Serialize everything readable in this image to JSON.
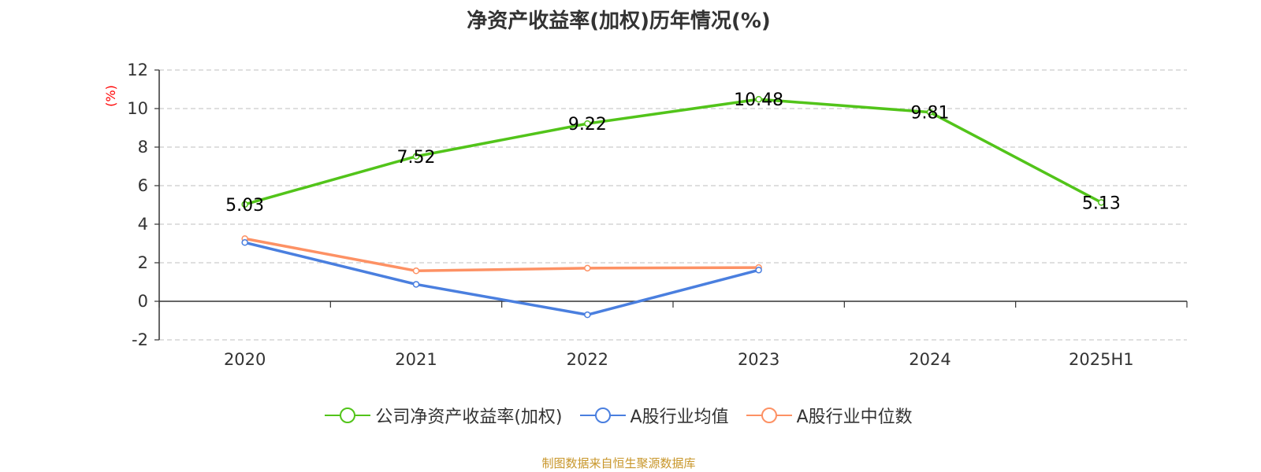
{
  "title": "净资产收益率(加权)历年情况(%)",
  "source": "制图数据来自恒生聚源数据库",
  "colors": {
    "axis": "#333333",
    "grid": "#cccccc",
    "ylabel": "#ff0000",
    "text": "#333333"
  },
  "chart_data": {
    "type": "line",
    "title": "净资产收益率(加权)历年情况(%)",
    "ylabel": "(%)",
    "xlabel": "",
    "categories": [
      "2020",
      "2021",
      "2022",
      "2023",
      "2024",
      "2025H1"
    ],
    "ylim": [
      -2,
      12
    ],
    "yticks": [
      -2,
      0,
      2,
      4,
      6,
      8,
      10,
      12
    ],
    "ytick_labels": [
      "-2",
      "0",
      "2",
      "4",
      "6",
      "8",
      "10",
      "12"
    ],
    "grid": true,
    "legend_position": "bottom",
    "series": [
      {
        "name": "公司净资产收益率(加权)",
        "color": "#52c41a",
        "values": [
          5.03,
          7.52,
          9.22,
          10.48,
          9.81,
          5.13
        ],
        "labels": [
          "5.03",
          "7.52",
          "9.22",
          "10.48",
          "9.81",
          "5.13"
        ]
      },
      {
        "name": "A股行业均值",
        "color": "#4a7fdf",
        "values": [
          3.05,
          0.88,
          -0.7,
          1.62,
          null,
          null
        ]
      },
      {
        "name": "A股行业中位数",
        "color": "#fd9164",
        "values": [
          3.25,
          1.58,
          1.72,
          1.75,
          null,
          null
        ]
      }
    ]
  }
}
